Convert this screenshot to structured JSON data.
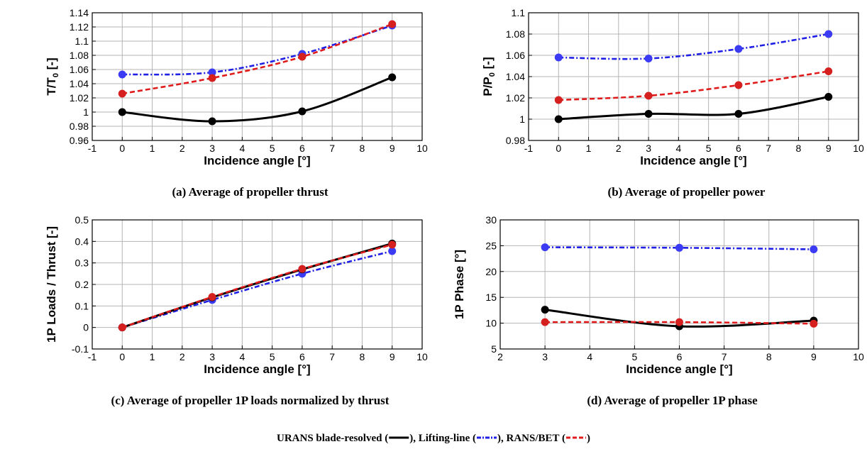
{
  "legend": {
    "entries": [
      {
        "label": "URANS blade-resolved (",
        "suffix": "),",
        "color": "#000000",
        "dash": ""
      },
      {
        "label": " Lifting-line (",
        "suffix": "),",
        "color": "#1f1fe6",
        "dash": "6,2,2,2"
      },
      {
        "label": " RANS/BET (",
        "suffix": ")",
        "color": "#e01b1b",
        "dash": "6,3"
      }
    ]
  },
  "colors": {
    "urans": "#000000",
    "lifting_line": "#1f1fe6",
    "rans_bet": "#e01b1b",
    "lifting_line_marker": "#3b3bf5",
    "rans_bet_marker": "#d62020"
  },
  "chart_data": [
    {
      "id": "a",
      "type": "line",
      "caption": "(a) Average of propeller thrust",
      "xlabel": "Incidence angle [°]",
      "ylabel": {
        "main": "T/T",
        "sub": "0",
        "tail": " [-]"
      },
      "xlim": [
        -1,
        10
      ],
      "ylim": [
        0.96,
        1.14
      ],
      "xticks": [
        -1,
        0,
        1,
        2,
        3,
        4,
        5,
        6,
        7,
        8,
        9,
        10
      ],
      "yticks": [
        "0.96",
        "0.98",
        "1",
        "1.02",
        "1.04",
        "1.06",
        "1.08",
        "1.1",
        "1.12",
        "1.14"
      ],
      "grid": true,
      "x": [
        0,
        3,
        6,
        9
      ],
      "series": [
        {
          "key": "lifting_line",
          "values": [
            1.053,
            1.056,
            1.082,
            1.122
          ]
        },
        {
          "key": "rans_bet",
          "values": [
            1.026,
            1.048,
            1.078,
            1.124
          ]
        },
        {
          "key": "urans",
          "values": [
            1.0,
            0.987,
            1.001,
            1.049
          ]
        }
      ]
    },
    {
      "id": "b",
      "type": "line",
      "caption": "(b) Average of propeller power",
      "xlabel": "Incidence angle [°]",
      "ylabel": {
        "main": "P/P",
        "sub": "0",
        "tail": " [-]"
      },
      "xlim": [
        -1,
        10
      ],
      "ylim": [
        0.98,
        1.1
      ],
      "xticks": [
        -1,
        0,
        1,
        2,
        3,
        4,
        5,
        6,
        7,
        8,
        9,
        10
      ],
      "yticks": [
        "0.98",
        "1",
        "1.02",
        "1.04",
        "1.06",
        "1.08",
        "1.1"
      ],
      "grid": true,
      "x": [
        0,
        3,
        6,
        9
      ],
      "series": [
        {
          "key": "lifting_line",
          "values": [
            1.058,
            1.057,
            1.066,
            1.08
          ]
        },
        {
          "key": "rans_bet",
          "values": [
            1.018,
            1.022,
            1.032,
            1.045
          ]
        },
        {
          "key": "urans",
          "values": [
            1.0,
            1.005,
            1.005,
            1.021
          ]
        }
      ]
    },
    {
      "id": "c",
      "type": "line",
      "caption": "(c) Average of propeller 1P loads normalized by thrust",
      "xlabel": "Incidence angle [°]",
      "ylabel": {
        "main": "1P Loads / Thrust [-]",
        "sub": "",
        "tail": ""
      },
      "xlim": [
        -1,
        10
      ],
      "ylim": [
        -0.1,
        0.5
      ],
      "xticks": [
        -1,
        0,
        1,
        2,
        3,
        4,
        5,
        6,
        7,
        8,
        9,
        10
      ],
      "yticks": [
        "-0.1",
        "0",
        "0.1",
        "0.2",
        "0.3",
        "0.4",
        "0.5"
      ],
      "grid": true,
      "x": [
        0,
        3,
        6,
        9
      ],
      "series": [
        {
          "key": "lifting_line",
          "values": [
            0.0,
            0.128,
            0.25,
            0.355
          ]
        },
        {
          "key": "urans",
          "values": [
            0.0,
            0.14,
            0.27,
            0.39
          ]
        },
        {
          "key": "rans_bet",
          "values": [
            0.0,
            0.142,
            0.272,
            0.385
          ]
        }
      ]
    },
    {
      "id": "d",
      "type": "line",
      "caption": "(d) Average of propeller 1P phase",
      "xlabel": "Incidence angle [°]",
      "ylabel": {
        "main": "1P Phase [°]",
        "sub": "",
        "tail": ""
      },
      "xlim": [
        2,
        10
      ],
      "ylim": [
        5,
        30
      ],
      "xticks": [
        2,
        3,
        4,
        5,
        6,
        7,
        8,
        9,
        10
      ],
      "yticks": [
        "5",
        "10",
        "15",
        "20",
        "25",
        "30"
      ],
      "grid": true,
      "x": [
        3,
        6,
        9
      ],
      "series": [
        {
          "key": "lifting_line",
          "values": [
            24.7,
            24.6,
            24.3
          ]
        },
        {
          "key": "urans",
          "values": [
            12.6,
            9.4,
            10.5
          ]
        },
        {
          "key": "rans_bet",
          "values": [
            10.2,
            10.2,
            9.9
          ]
        }
      ]
    }
  ]
}
